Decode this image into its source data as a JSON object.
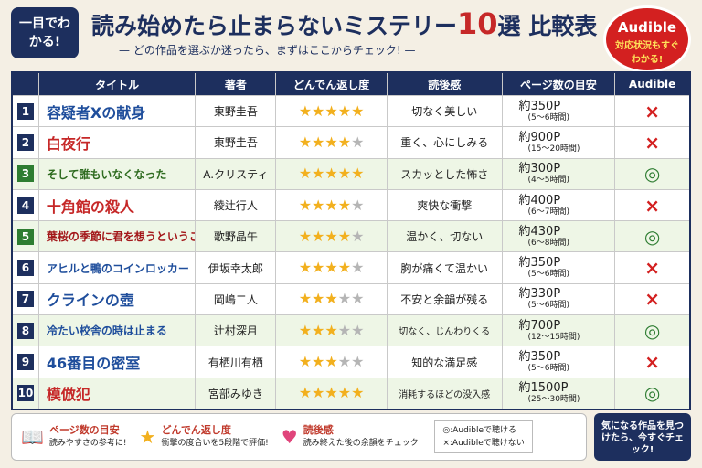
{
  "header": {
    "badge": "一目でわかる!",
    "title_main": "読み始めたら止まらないミステリー",
    "title_number": "10",
    "title_tail": "選 比較表",
    "subtitle": "どの作品を選ぶか迷ったら、まずはここからチェック!",
    "audible_badge": {
      "title": "Audible",
      "text": "対応状況もすぐわかる!"
    }
  },
  "table": {
    "columns": [
      "タイトル",
      "著者",
      "どんでん返し度",
      "読後感",
      "ページ数の目安",
      "Audible"
    ],
    "star_count": 5,
    "rows": [
      {
        "no": "1",
        "no_color": "#1d2f5e",
        "title": "容疑者Xの献身",
        "title_color": "#1f4e9c",
        "author": "東野圭吾",
        "rating": 5,
        "feel": "切なく美しい",
        "pages": "約350P",
        "time": "(5〜6時間)",
        "audible": "×"
      },
      {
        "no": "2",
        "no_color": "#1d2f5e",
        "title": "白夜行",
        "title_color": "#c62828",
        "author": "東野圭吾",
        "rating": 4,
        "feel": "重く、心にしみる",
        "pages": "約900P",
        "time": "(15〜20時間)",
        "audible": "×"
      },
      {
        "no": "3",
        "no_color": "#2e7d32",
        "title": "そして誰もいなくなった",
        "title_color": "#2e6b1f",
        "author": "A.クリスティ",
        "rating": 5,
        "feel": "スカッとした怖さ",
        "pages": "約300P",
        "time": "(4〜5時間)",
        "audible": "◎"
      },
      {
        "no": "4",
        "no_color": "#1d2f5e",
        "title": "十角館の殺人",
        "title_color": "#c62828",
        "author": "綾辻行人",
        "rating": 4,
        "feel": "爽快な衝撃",
        "pages": "約400P",
        "time": "(6〜7時間)",
        "audible": "×"
      },
      {
        "no": "5",
        "no_color": "#2e7d32",
        "title": "葉桜の季節に君を想うということ",
        "title_color": "#a3171a",
        "author": "歌野晶午",
        "rating": 4,
        "feel": "温かく、切ない",
        "pages": "約430P",
        "time": "(6〜8時間)",
        "audible": "◎"
      },
      {
        "no": "6",
        "no_color": "#1d2f5e",
        "title": "アヒルと鴨のコインロッカー",
        "title_color": "#1f4e9c",
        "author": "伊坂幸太郎",
        "rating": 4,
        "feel": "胸が痛くて温かい",
        "pages": "約350P",
        "time": "(5〜6時間)",
        "audible": "×"
      },
      {
        "no": "7",
        "no_color": "#1d2f5e",
        "title": "クラインの壺",
        "title_color": "#1f4e9c",
        "author": "岡嶋二人",
        "rating": 3,
        "feel": "不安と余韻が残る",
        "pages": "約330P",
        "time": "(5〜6時間)",
        "audible": "×"
      },
      {
        "no": "8",
        "no_color": "#1d2f5e",
        "title": "冷たい校舎の時は止まる",
        "title_color": "#1f4e9c",
        "author": "辻村深月",
        "rating": 3,
        "feel": "切なく、じんわりくる",
        "pages": "約700P",
        "time": "(12〜15時間)",
        "audible": "◎"
      },
      {
        "no": "9",
        "no_color": "#1d2f5e",
        "title": "46番目の密室",
        "title_color": "#1f4e9c",
        "author": "有栖川有栖",
        "rating": 3,
        "feel": "知的な満足感",
        "pages": "約350P",
        "time": "(5〜6時間)",
        "audible": "×"
      },
      {
        "no": "10",
        "no_color": "#1d2f5e",
        "title": "模倣犯",
        "title_color": "#c62828",
        "author": "宮部みゆき",
        "rating": 5,
        "feel": "消耗するほどの没入感",
        "pages": "約1500P",
        "time": "(25〜30時間)",
        "audible": "◎"
      }
    ]
  },
  "footer": {
    "legend": [
      {
        "title": "ページ数の目安",
        "text": "読みやすさの参考に!"
      },
      {
        "title": "どんでん返し度",
        "text": "衝撃の度合いを5段階で評価!"
      },
      {
        "title": "読後感",
        "text": "読み終えた後の余韻をチェック!"
      }
    ],
    "audible_legend": [
      "◎:Audibleで聴ける",
      "×:Audibleで聴けない"
    ],
    "cta": "気になる作品を見つけたら、今すぐチェック!"
  }
}
